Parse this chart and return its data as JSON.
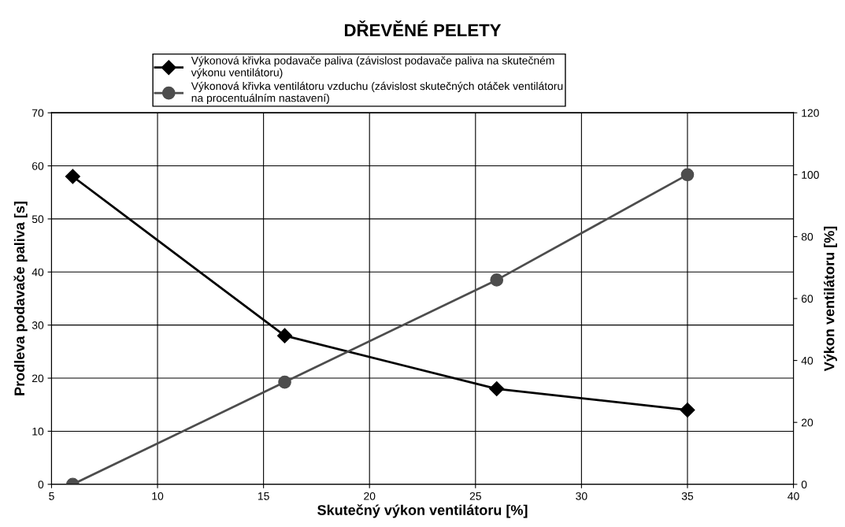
{
  "chart_data": {
    "type": "line",
    "title": "DŘEVĚNÉ PELETY",
    "xlabel": "Skutečný výkon ventilátoru [%]",
    "ylabel": "Prodleva podavače paliva [s]",
    "y2label": "Výkon ventilátoru [%]",
    "xlim": [
      5,
      40
    ],
    "xticks": [
      5,
      10,
      15,
      20,
      25,
      30,
      35,
      40
    ],
    "ylim": [
      0,
      70
    ],
    "yticks": [
      0,
      10,
      20,
      30,
      40,
      50,
      60,
      70
    ],
    "y2lim": [
      0,
      120
    ],
    "y2ticks": [
      0,
      20,
      40,
      60,
      80,
      100,
      120
    ],
    "grid": true,
    "legend": "top",
    "line_style": "solid",
    "series": [
      {
        "name": "Výkonová křivka podavače paliva (závislost podavače paliva na skutečném\nvýkonu ventilátoru)",
        "color": "#000000",
        "marker": "diamond",
        "x": [
          6,
          16,
          26,
          35
        ],
        "values": [
          58,
          28,
          18,
          14
        ]
      },
      {
        "name": "Výkonová křivka ventilátoru vzduchu (závislost skutečných otáček ventilátoru\nna procentuálním nastavení)",
        "color": "#4d4d4d",
        "marker": "circle",
        "axis": "y2",
        "x": [
          6,
          16,
          26,
          35
        ],
        "values": [
          0,
          33,
          66,
          100
        ]
      }
    ]
  }
}
